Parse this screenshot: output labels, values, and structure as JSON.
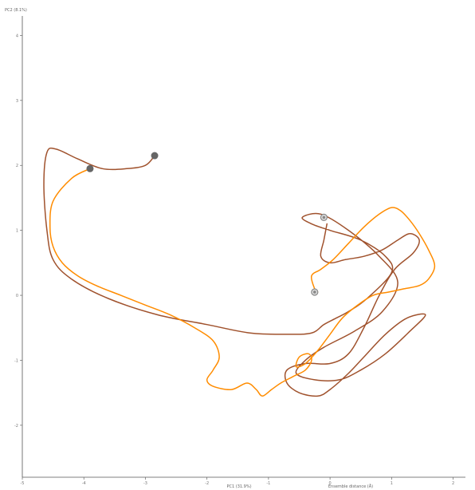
{
  "chart_data": {
    "type": "line",
    "title": "",
    "ylabel_top": "PC2 (8.1%)",
    "xlabel": "PC1 (31.9%)",
    "xlabel_secondary": "Ensemble distance (Å)",
    "xlim": [
      -5,
      2.2
    ],
    "ylim": [
      -2.8,
      4.3
    ],
    "x_ticks": [
      -5,
      -4,
      -3,
      -2,
      -1,
      0,
      1,
      2
    ],
    "y_ticks": [
      -2,
      -1,
      0,
      1,
      2,
      3,
      4
    ],
    "grid": false,
    "colors": {
      "series_a": "#8b4513",
      "series_b": "#ff8c00",
      "marker": "#666666"
    },
    "series": [
      {
        "color": "#a0522d",
        "x": [
          -2.85,
          -3.0,
          -3.3,
          -3.7,
          -4.1,
          -4.45,
          -4.6,
          -4.65,
          -4.6,
          -4.5,
          -4.2,
          -3.6,
          -2.8,
          -2.0,
          -1.3,
          -0.7,
          -0.3,
          -0.1,
          0.1,
          0.3,
          0.6,
          1.0,
          0.9,
          0.5,
          0.0,
          -0.3,
          -0.45,
          -0.15,
          0.3,
          0.8,
          1.1,
          0.85,
          0.4,
          -0.1,
          -0.4,
          -0.55,
          -0.25,
          0.15,
          0.5,
          0.9,
          1.3,
          1.55,
          1.25,
          0.9,
          0.55,
          0.3,
          0.0,
          -0.2,
          -0.5,
          -0.7,
          -0.7,
          -0.4,
          0.0,
          0.3,
          0.55,
          0.8,
          1.05,
          1.35,
          1.45,
          1.3,
          1.1,
          0.85,
          0.55,
          0.25,
          0.0,
          -0.15,
          -0.1,
          -0.05
        ],
        "y": [
          2.15,
          2.0,
          1.95,
          1.95,
          2.1,
          2.25,
          2.2,
          1.7,
          1.0,
          0.55,
          0.25,
          -0.05,
          -0.3,
          -0.45,
          -0.58,
          -0.6,
          -0.58,
          -0.45,
          -0.35,
          -0.25,
          -0.05,
          0.35,
          0.6,
          0.85,
          1.0,
          1.1,
          1.2,
          1.25,
          1.0,
          0.6,
          0.2,
          -0.25,
          -0.55,
          -0.8,
          -1.0,
          -1.2,
          -1.3,
          -1.3,
          -1.15,
          -0.9,
          -0.55,
          -0.3,
          -0.35,
          -0.6,
          -0.95,
          -1.2,
          -1.45,
          -1.55,
          -1.5,
          -1.35,
          -1.15,
          -1.05,
          -1.05,
          -0.9,
          -0.5,
          0.0,
          0.4,
          0.65,
          0.85,
          0.95,
          0.85,
          0.7,
          0.6,
          0.55,
          0.5,
          0.6,
          0.85,
          1.1
        ]
      },
      {
        "color": "#ff8c00",
        "x": [
          -3.9,
          -4.2,
          -4.5,
          -4.55,
          -4.5,
          -4.35,
          -4.1,
          -3.8,
          -3.4,
          -3.0,
          -2.6,
          -2.2,
          -1.9,
          -1.8,
          -1.9,
          -2.0,
          -1.9,
          -1.6,
          -1.35,
          -1.2,
          -1.1,
          -0.95,
          -0.8,
          -0.6,
          -0.4,
          -0.3,
          -0.35,
          -0.5,
          -0.55,
          -0.4,
          -0.2,
          0.0,
          0.2,
          0.45,
          0.7,
          0.95,
          1.2,
          1.45,
          1.6,
          1.7,
          1.6,
          1.45,
          1.3,
          1.15,
          1.0,
          0.8,
          0.55,
          0.3,
          0.05,
          -0.15,
          -0.3,
          -0.25,
          -0.2
        ],
        "y": [
          1.95,
          1.8,
          1.45,
          1.05,
          0.75,
          0.5,
          0.3,
          0.15,
          0.0,
          -0.15,
          -0.3,
          -0.5,
          -0.7,
          -0.95,
          -1.15,
          -1.3,
          -1.4,
          -1.45,
          -1.35,
          -1.45,
          -1.55,
          -1.45,
          -1.35,
          -1.25,
          -1.15,
          -1.0,
          -0.9,
          -0.95,
          -1.1,
          -1.05,
          -0.85,
          -0.6,
          -0.35,
          -0.15,
          0.0,
          0.05,
          0.1,
          0.15,
          0.25,
          0.45,
          0.7,
          0.95,
          1.15,
          1.3,
          1.35,
          1.25,
          1.05,
          0.8,
          0.55,
          0.4,
          0.3,
          0.1,
          0.05
        ]
      }
    ],
    "markers": [
      {
        "x": -2.85,
        "y": 2.15,
        "color": "#666666"
      },
      {
        "x": -3.9,
        "y": 1.95,
        "color": "#666666"
      },
      {
        "x": -0.1,
        "y": 1.2,
        "color": "#888888",
        "ring": true
      },
      {
        "x": -0.25,
        "y": 0.05,
        "color": "#888888",
        "ring": true
      }
    ]
  }
}
